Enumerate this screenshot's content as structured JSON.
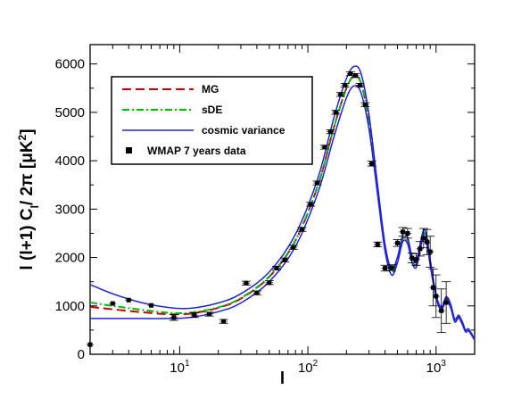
{
  "chart_data": {
    "type": "line",
    "title": "",
    "xlabel": "l",
    "ylabel_main": "l (l+1) C",
    "ylabel_sub": "l",
    "ylabel_tail": "/ 2π [μK",
    "ylabel_sup": "2",
    "ylabel_close": "]",
    "x_scale": "log",
    "xlim": [
      2,
      2000
    ],
    "ylim": [
      0,
      6400
    ],
    "y_ticks": [
      "0",
      "1000",
      "2000",
      "3000",
      "4000",
      "5000",
      "6000"
    ],
    "x_ticks": [
      {
        "value": 10,
        "base": "10",
        "exp": "1"
      },
      {
        "value": 100,
        "base": "10",
        "exp": "2"
      },
      {
        "value": 1000,
        "base": "10",
        "exp": "3"
      }
    ],
    "grid": false,
    "legend_position": "top-left",
    "series": [
      {
        "name": "MG",
        "color": "#cc0000",
        "dash": "long-dash",
        "points": [
          [
            2,
            980
          ],
          [
            3,
            930
          ],
          [
            5,
            870
          ],
          [
            8,
            830
          ],
          [
            12,
            840
          ],
          [
            20,
            960
          ],
          [
            30,
            1150
          ],
          [
            50,
            1600
          ],
          [
            80,
            2350
          ],
          [
            120,
            3500
          ],
          [
            160,
            4700
          ],
          [
            200,
            5500
          ],
          [
            230,
            5750
          ],
          [
            260,
            5600
          ],
          [
            300,
            4800
          ],
          [
            350,
            3400
          ],
          [
            400,
            2200
          ],
          [
            450,
            1700
          ],
          [
            500,
            1950
          ],
          [
            550,
            2400
          ],
          [
            600,
            2350
          ],
          [
            650,
            1950
          ],
          [
            700,
            1850
          ],
          [
            750,
            2200
          ],
          [
            800,
            2500
          ],
          [
            850,
            2350
          ],
          [
            900,
            1900
          ],
          [
            1000,
            1200
          ],
          [
            1100,
            950
          ],
          [
            1200,
            1150
          ],
          [
            1300,
            1000
          ],
          [
            1400,
            700
          ],
          [
            1500,
            780
          ],
          [
            1600,
            650
          ],
          [
            1700,
            480
          ],
          [
            1800,
            500
          ],
          [
            2000,
            300
          ]
        ]
      },
      {
        "name": "sDE",
        "color": "#00bb00",
        "dash": "dash-dot",
        "points": [
          [
            2,
            1070
          ],
          [
            3,
            1000
          ],
          [
            5,
            920
          ],
          [
            8,
            860
          ],
          [
            12,
            860
          ],
          [
            20,
            970
          ],
          [
            30,
            1160
          ],
          [
            50,
            1610
          ],
          [
            80,
            2360
          ],
          [
            120,
            3500
          ],
          [
            160,
            4700
          ],
          [
            200,
            5500
          ],
          [
            230,
            5750
          ],
          [
            260,
            5600
          ],
          [
            300,
            4800
          ],
          [
            350,
            3400
          ],
          [
            400,
            2200
          ],
          [
            450,
            1700
          ],
          [
            500,
            1950
          ],
          [
            550,
            2400
          ],
          [
            600,
            2350
          ],
          [
            650,
            1950
          ],
          [
            700,
            1850
          ],
          [
            750,
            2200
          ],
          [
            800,
            2500
          ],
          [
            850,
            2350
          ],
          [
            900,
            1900
          ],
          [
            1000,
            1200
          ],
          [
            1100,
            950
          ],
          [
            1200,
            1150
          ],
          [
            1300,
            1000
          ],
          [
            1400,
            700
          ],
          [
            1500,
            780
          ],
          [
            1600,
            650
          ],
          [
            1700,
            480
          ],
          [
            1800,
            500
          ],
          [
            2000,
            300
          ]
        ]
      },
      {
        "name": "cosmic variance",
        "color": "#2222dd",
        "dash": "solid",
        "points": [
          [
            2,
            1440
          ],
          [
            3,
            1250
          ],
          [
            5,
            1070
          ],
          [
            8,
            970
          ],
          [
            12,
            950
          ],
          [
            20,
            1060
          ],
          [
            30,
            1250
          ],
          [
            50,
            1700
          ],
          [
            80,
            2480
          ],
          [
            120,
            3650
          ],
          [
            160,
            4900
          ],
          [
            200,
            5700
          ],
          [
            230,
            5950
          ],
          [
            260,
            5800
          ],
          [
            300,
            4950
          ],
          [
            350,
            3500
          ],
          [
            400,
            2270
          ],
          [
            450,
            1760
          ],
          [
            500,
            2010
          ],
          [
            550,
            2470
          ],
          [
            600,
            2420
          ],
          [
            650,
            2010
          ],
          [
            700,
            1910
          ],
          [
            750,
            2260
          ],
          [
            800,
            2570
          ],
          [
            850,
            2420
          ],
          [
            900,
            1960
          ],
          [
            1000,
            1240
          ],
          [
            1100,
            980
          ],
          [
            1200,
            1190
          ],
          [
            1300,
            1040
          ],
          [
            1400,
            730
          ],
          [
            1500,
            810
          ],
          [
            1600,
            680
          ],
          [
            1700,
            500
          ],
          [
            1800,
            520
          ],
          [
            2000,
            310
          ]
        ]
      },
      {
        "name": "",
        "color": "#2222dd",
        "dash": "solid",
        "points": [
          [
            2,
            740
          ],
          [
            3,
            740
          ],
          [
            5,
            740
          ],
          [
            8,
            740
          ],
          [
            12,
            760
          ],
          [
            20,
            880
          ],
          [
            30,
            1060
          ],
          [
            50,
            1500
          ],
          [
            80,
            2230
          ],
          [
            120,
            3350
          ],
          [
            160,
            4500
          ],
          [
            200,
            5300
          ],
          [
            230,
            5550
          ],
          [
            260,
            5400
          ],
          [
            300,
            4650
          ],
          [
            350,
            3300
          ],
          [
            400,
            2130
          ],
          [
            450,
            1640
          ],
          [
            500,
            1890
          ],
          [
            550,
            2330
          ],
          [
            600,
            2280
          ],
          [
            650,
            1890
          ],
          [
            700,
            1790
          ],
          [
            750,
            2140
          ],
          [
            800,
            2430
          ],
          [
            850,
            2280
          ],
          [
            900,
            1840
          ],
          [
            1000,
            1160
          ],
          [
            1100,
            920
          ],
          [
            1200,
            1110
          ],
          [
            1300,
            960
          ],
          [
            1400,
            670
          ],
          [
            1500,
            750
          ],
          [
            1600,
            620
          ],
          [
            1700,
            460
          ],
          [
            1800,
            480
          ],
          [
            2000,
            290
          ]
        ]
      }
    ],
    "observations": {
      "name": "WMAP 7 years data",
      "color": "#000000",
      "points": [
        [
          2,
          200,
          0,
          0
        ],
        [
          3,
          1050,
          0,
          0
        ],
        [
          4,
          1120,
          0,
          0
        ],
        [
          6,
          1010,
          0,
          0
        ],
        [
          9,
          760,
          60,
          0
        ],
        [
          13,
          810,
          50,
          0
        ],
        [
          17,
          830,
          40,
          0
        ],
        [
          22,
          680,
          40,
          0
        ],
        [
          33,
          1470,
          40,
          0
        ],
        [
          40,
          1270,
          40,
          0
        ],
        [
          50,
          1480,
          40,
          0
        ],
        [
          57,
          1780,
          40,
          0
        ],
        [
          66,
          1950,
          40,
          0
        ],
        [
          77,
          2210,
          40,
          0
        ],
        [
          90,
          2580,
          40,
          0
        ],
        [
          105,
          3100,
          40,
          0
        ],
        [
          118,
          3540,
          40,
          0
        ],
        [
          135,
          4280,
          40,
          0
        ],
        [
          150,
          4600,
          40,
          0
        ],
        [
          165,
          5000,
          40,
          0
        ],
        [
          180,
          5370,
          40,
          0
        ],
        [
          195,
          5560,
          40,
          0
        ],
        [
          215,
          5800,
          40,
          0
        ],
        [
          235,
          5760,
          40,
          0
        ],
        [
          255,
          5560,
          40,
          0
        ],
        [
          280,
          5160,
          40,
          0
        ],
        [
          315,
          3940,
          50,
          0
        ],
        [
          350,
          2270,
          50,
          0
        ],
        [
          400,
          1780,
          60,
          0
        ],
        [
          450,
          1790,
          60,
          0
        ],
        [
          500,
          2300,
          70,
          0
        ],
        [
          550,
          2530,
          90,
          0
        ],
        [
          600,
          2500,
          100,
          0
        ],
        [
          650,
          1990,
          100,
          0
        ],
        [
          700,
          1960,
          120,
          0
        ],
        [
          750,
          2180,
          150,
          0
        ],
        [
          800,
          2400,
          200,
          0
        ],
        [
          850,
          2320,
          260,
          0
        ],
        [
          900,
          2120,
          320,
          0
        ],
        [
          950,
          1380,
          380,
          0
        ],
        [
          1000,
          1200,
          440,
          0
        ],
        [
          1100,
          900,
          450,
          0
        ],
        [
          1200,
          1070,
          430,
          0
        ]
      ]
    }
  }
}
